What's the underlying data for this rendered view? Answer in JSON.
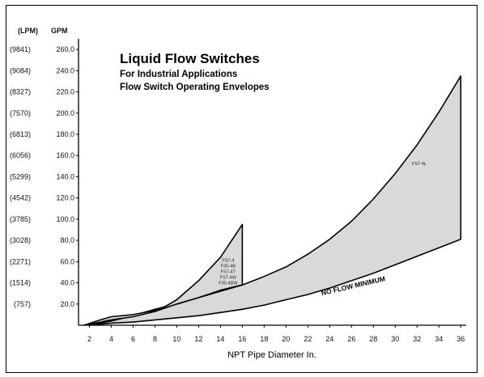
{
  "chart_data": {
    "type": "area",
    "title": "Liquid Flow Switches",
    "subtitle_lines": [
      "For Industrial Applications",
      "Flow Switch Operating Envelopes"
    ],
    "xlabel": "NPT Pipe Diameter In.",
    "ylabel_lpm": "(LPM)",
    "ylabel_gpm": "GPM",
    "xlim": [
      1,
      36.5
    ],
    "ylim": [
      0,
      270
    ],
    "x_ticks": [
      2,
      4,
      6,
      8,
      10,
      12,
      14,
      16,
      18,
      20,
      22,
      24,
      26,
      28,
      30,
      32,
      34,
      36
    ],
    "y_ticks": [
      {
        "gpm": "20.0",
        "lpm": "(757)"
      },
      {
        "gpm": "40.0",
        "lpm": "(1514)"
      },
      {
        "gpm": "60.0",
        "lpm": "(2271)"
      },
      {
        "gpm": "80.0",
        "lpm": "(3028)"
      },
      {
        "gpm": "100.0",
        "lpm": "(3785)"
      },
      {
        "gpm": "120.0",
        "lpm": "(4542)"
      },
      {
        "gpm": "140.0",
        "lpm": "(5299)"
      },
      {
        "gpm": "160.0",
        "lpm": "(6056)"
      },
      {
        "gpm": "180.0",
        "lpm": "(6813)"
      },
      {
        "gpm": "200.0",
        "lpm": "(7570)"
      },
      {
        "gpm": "220.0",
        "lpm": "(8327)"
      },
      {
        "gpm": "240.0",
        "lpm": "(9084)"
      },
      {
        "gpm": "260.0",
        "lpm": "(9841)"
      }
    ],
    "series": [
      {
        "name": "FS7-4",
        "label_lines": [
          "FS7-4",
          "F30-4B",
          "FS7-4T",
          "FS7-4W",
          "F30-4BW"
        ],
        "upper": [
          [
            1.5,
            0
          ],
          [
            3,
            5
          ],
          [
            4,
            8
          ],
          [
            6,
            10
          ],
          [
            8,
            14
          ],
          [
            9,
            18
          ],
          [
            10,
            24
          ],
          [
            12,
            42
          ],
          [
            14,
            64
          ],
          [
            16,
            95
          ]
        ],
        "lower": [
          [
            16,
            38
          ],
          [
            14,
            33
          ],
          [
            12,
            26
          ],
          [
            10,
            20
          ],
          [
            8,
            13
          ],
          [
            6,
            8
          ],
          [
            4,
            5
          ],
          [
            3,
            3
          ],
          [
            1.5,
            0
          ]
        ]
      },
      {
        "name": "FS7-4L",
        "label_lines": [
          "FS7-4L"
        ],
        "upper": [
          [
            2,
            0
          ],
          [
            4,
            4
          ],
          [
            6,
            9
          ],
          [
            8,
            15
          ],
          [
            10,
            20
          ],
          [
            12,
            26
          ],
          [
            14,
            32
          ],
          [
            16,
            38
          ],
          [
            18,
            46
          ],
          [
            20,
            55
          ],
          [
            22,
            67
          ],
          [
            24,
            81
          ],
          [
            26,
            98
          ],
          [
            28,
            119
          ],
          [
            30,
            143
          ],
          [
            32,
            170
          ],
          [
            34,
            201
          ],
          [
            36,
            235
          ]
        ],
        "lower": [
          [
            36,
            81
          ],
          [
            34,
            73
          ],
          [
            32,
            65
          ],
          [
            30,
            57
          ],
          [
            28,
            49
          ],
          [
            26,
            42
          ],
          [
            24,
            35
          ],
          [
            22,
            29
          ],
          [
            20,
            24
          ],
          [
            18,
            19
          ],
          [
            16,
            15
          ],
          [
            14,
            12
          ],
          [
            12,
            9
          ],
          [
            10,
            7
          ],
          [
            8,
            5
          ],
          [
            6,
            3
          ],
          [
            4,
            2
          ],
          [
            2,
            0
          ]
        ]
      }
    ],
    "annotations": {
      "no_flow_minimum": "NO FLOW MINIMUM"
    },
    "grid": false,
    "legend": "none"
  }
}
